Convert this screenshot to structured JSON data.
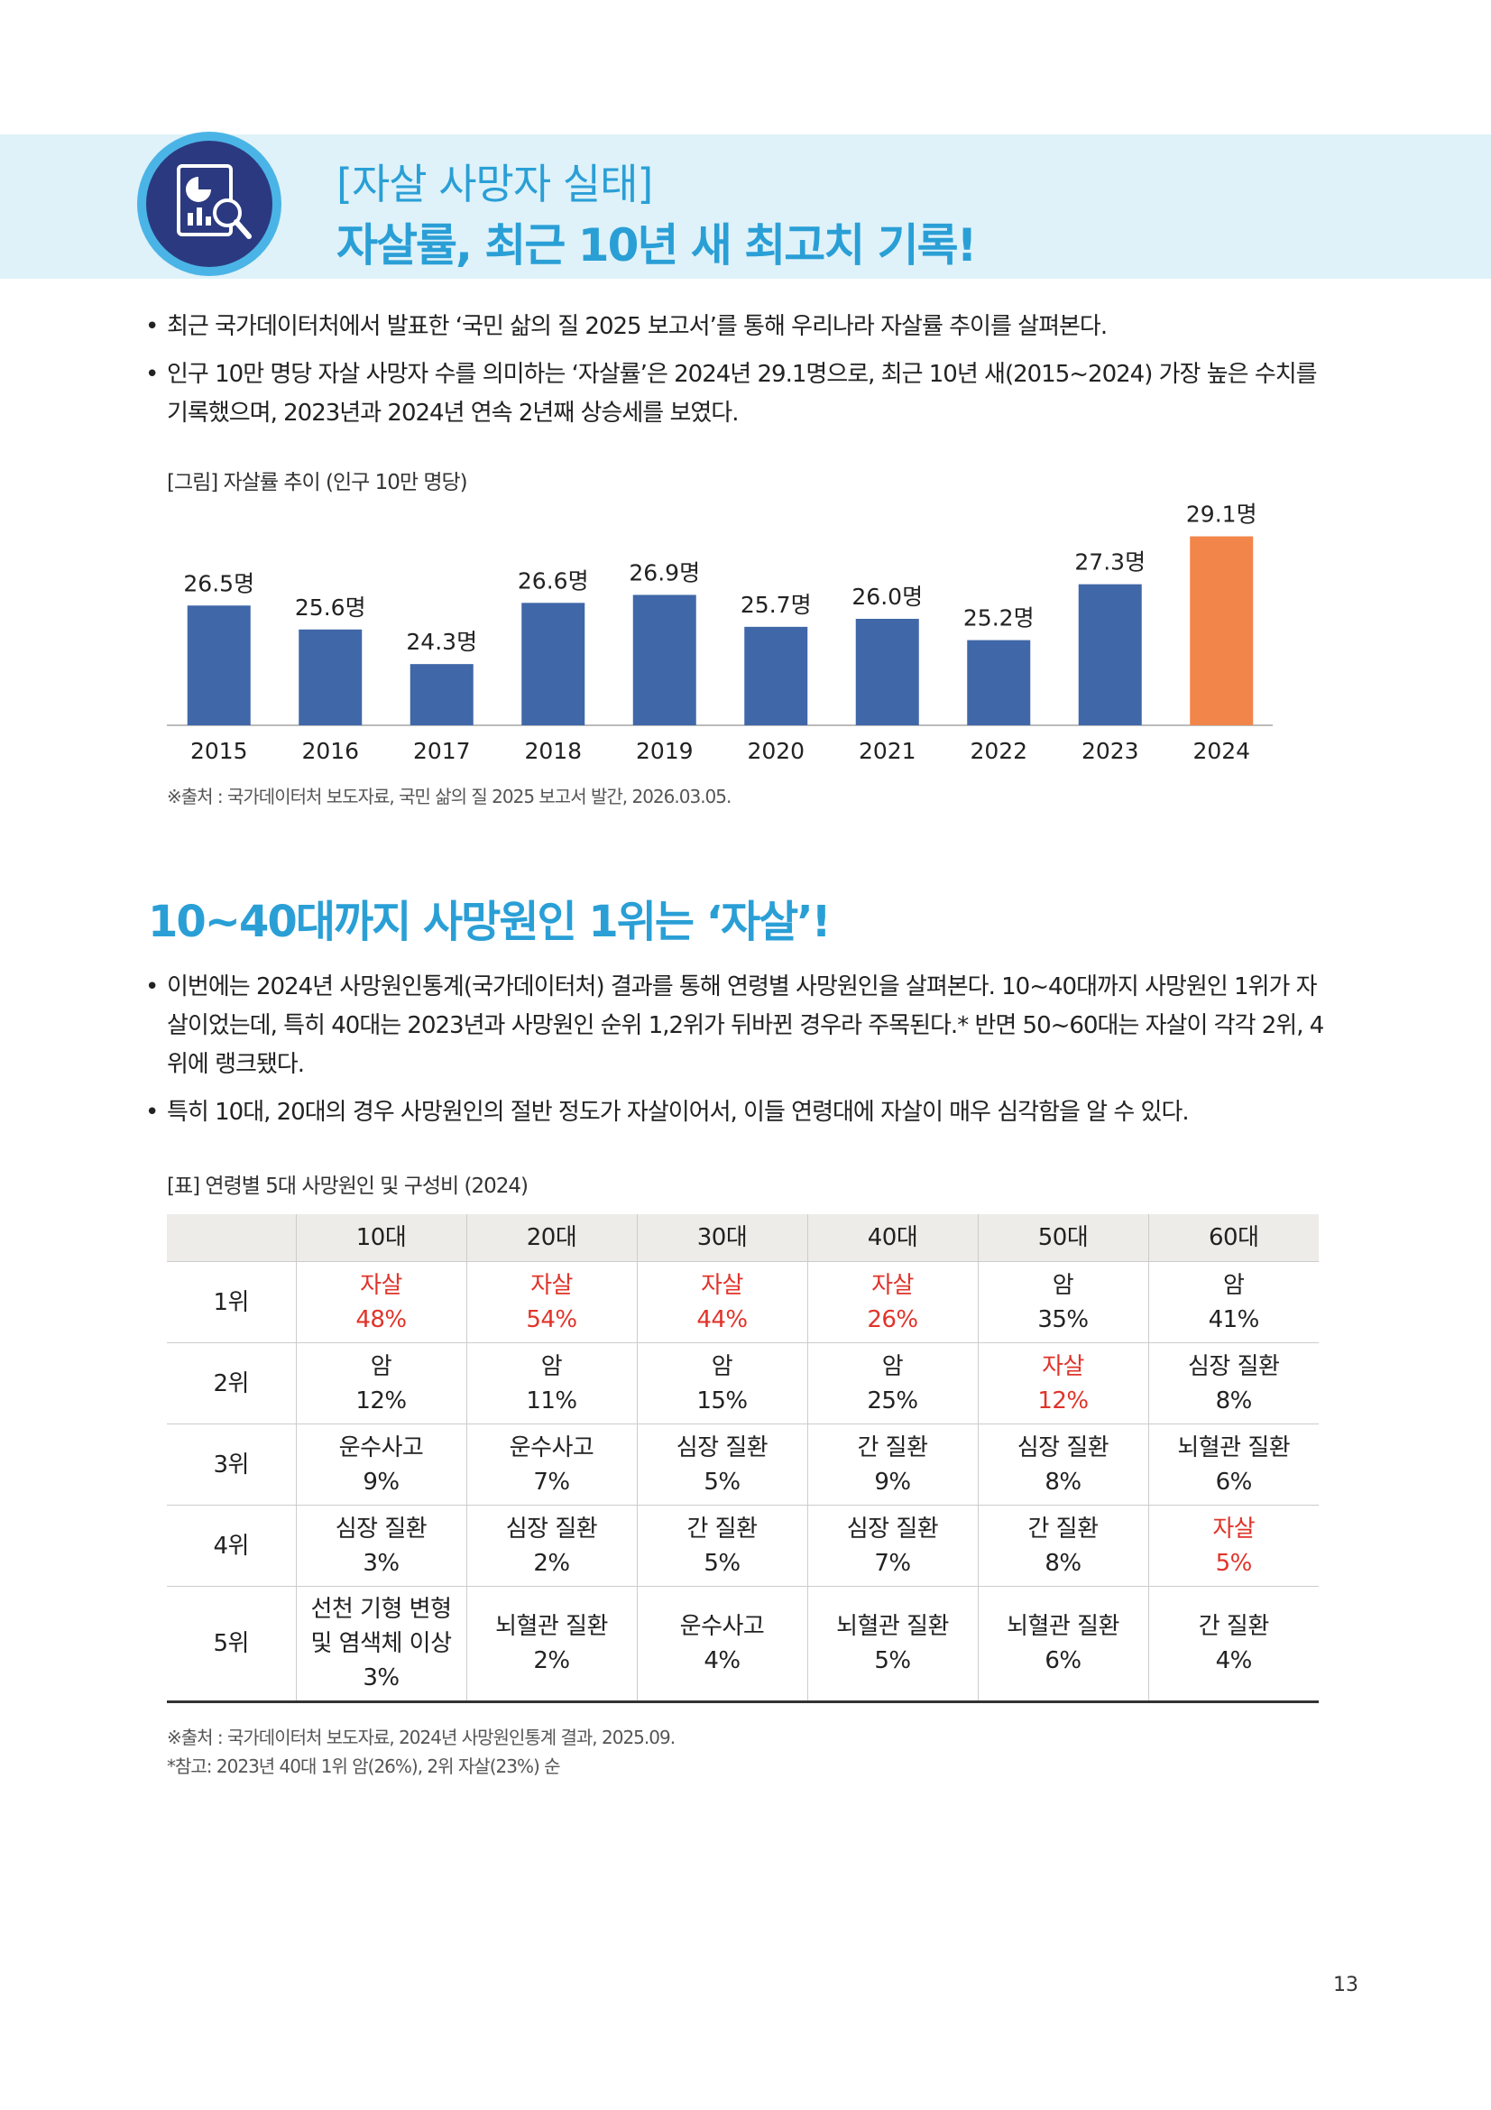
{
  "header": {
    "label": "[자살 사망자 실태]",
    "title": "자살률, 최근 10년 새 최고치 기록!"
  },
  "bullets1": [
    "최근 국가데이터처에서 발표한 ‘국민 삶의 질 2025 보고서’를 통해 우리나라 자살률 추이를 살펴본다.",
    "인구 10만 명당 자살 사망자 수를 의미하는 ‘자살률’은 2024년 29.1명으로, 최근 10년 새(2015~2024) 가장 높은 수치를 기록했으며, 2023년과 2024년 연속 2년째 상승세를 보였다."
  ],
  "chart_data": {
    "type": "bar",
    "title": "[그림] 자살률 추이 (인구 10만 명당)",
    "categories": [
      "2015",
      "2016",
      "2017",
      "2018",
      "2019",
      "2020",
      "2021",
      "2022",
      "2023",
      "2024"
    ],
    "values": [
      26.5,
      25.6,
      24.3,
      26.6,
      26.9,
      25.7,
      26.0,
      25.2,
      27.3,
      29.1
    ],
    "value_labels": [
      "26.5명",
      "25.6명",
      "24.3명",
      "26.6명",
      "26.9명",
      "25.7명",
      "26.0명",
      "25.2명",
      "27.3명",
      "29.1명"
    ],
    "colors": [
      "#4067a8",
      "#4067a8",
      "#4067a8",
      "#4067a8",
      "#4067a8",
      "#4067a8",
      "#4067a8",
      "#4067a8",
      "#4067a8",
      "#f2854a"
    ],
    "ylim": [
      22,
      30
    ],
    "source": "※출처 : 국가데이터처 보도자료, 국민 삶의 질 2025 보고서 발간, 2026.03.05."
  },
  "section2": {
    "title": "10~40대까지 사망원인 1위는 ‘자살’!"
  },
  "bullets2": [
    "이번에는 2024년 사망원인통계(국가데이터처) 결과를 통해 연령별 사망원인을 살펴본다. 10~40대까지 사망원인 1위가 자살이었는데, 특히 40대는 2023년과 사망원인 순위 1,2위가 뒤바뀐 경우라 주목된다.* 반면 50~60대는 자살이 각각 2위, 4위에 랭크됐다.",
    "특히 10대, 20대의 경우 사망원인의 절반 정도가 자살이어서, 이들 연령대에 자살이 매우 심각함을 알 수 있다."
  ],
  "table": {
    "caption": "[표] 연령별 5대 사망원인 및 구성비 (2024)",
    "columns": [
      "10대",
      "20대",
      "30대",
      "40대",
      "50대",
      "60대"
    ],
    "rows": [
      {
        "label": "1위",
        "cells": [
          {
            "cause": "자살",
            "share": "48%",
            "color": "#e0342a"
          },
          {
            "cause": "자살",
            "share": "54%",
            "color": "#e0342a"
          },
          {
            "cause": "자살",
            "share": "44%",
            "color": "#e0342a"
          },
          {
            "cause": "자살",
            "share": "26%",
            "color": "#e0342a"
          },
          {
            "cause": "암",
            "share": "35%"
          },
          {
            "cause": "암",
            "share": "41%"
          }
        ]
      },
      {
        "label": "2위",
        "cells": [
          {
            "cause": "암",
            "share": "12%"
          },
          {
            "cause": "암",
            "share": "11%"
          },
          {
            "cause": "암",
            "share": "15%"
          },
          {
            "cause": "암",
            "share": "25%"
          },
          {
            "cause": "자살",
            "share": "12%",
            "color": "#e0342a"
          },
          {
            "cause": "심장 질환",
            "share": "8%"
          }
        ]
      },
      {
        "label": "3위",
        "cells": [
          {
            "cause": "운수사고",
            "share": "9%"
          },
          {
            "cause": "운수사고",
            "share": "7%"
          },
          {
            "cause": "심장 질환",
            "share": "5%"
          },
          {
            "cause": "간 질환",
            "share": "9%"
          },
          {
            "cause": "심장 질환",
            "share": "8%"
          },
          {
            "cause": "뇌혈관 질환",
            "share": "6%"
          }
        ]
      },
      {
        "label": "4위",
        "cells": [
          {
            "cause": "심장 질환",
            "share": "3%"
          },
          {
            "cause": "심장 질환",
            "share": "2%"
          },
          {
            "cause": "간 질환",
            "share": "5%"
          },
          {
            "cause": "심장 질환",
            "share": "7%"
          },
          {
            "cause": "간 질환",
            "share": "8%"
          },
          {
            "cause": "자살",
            "share": "5%",
            "color": "#e0342a"
          }
        ]
      },
      {
        "label": "5위",
        "cells": [
          {
            "cause": "선천 기형 변형 및 염색체 이상",
            "share": "3%"
          },
          {
            "cause": "뇌혈관 질환",
            "share": "2%"
          },
          {
            "cause": "운수사고",
            "share": "4%"
          },
          {
            "cause": "뇌혈관 질환",
            "share": "5%"
          },
          {
            "cause": "뇌혈관 질환",
            "share": "6%"
          },
          {
            "cause": "간 질환",
            "share": "4%"
          }
        ]
      }
    ],
    "notes": [
      "※출처 : 국가데이터처 보도자료, 2024년 사망원인통계 결과, 2025.09.",
      "*참고: 2023년 40대 1위 암(26%), 2위 자살(23%) 순"
    ]
  },
  "page_number": "13"
}
